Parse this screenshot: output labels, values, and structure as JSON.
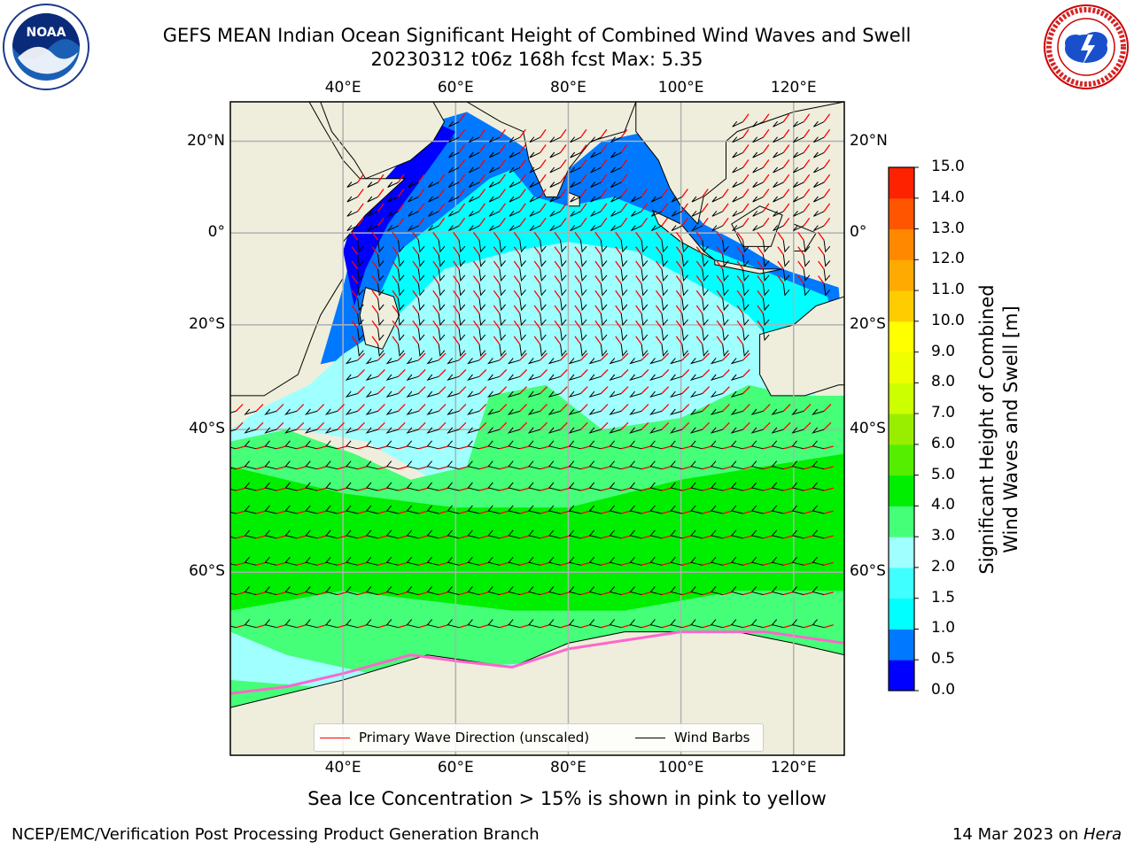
{
  "header": {
    "title_line1": "GEFS MEAN Indian Ocean Significant Height of Combined Wind Waves and Swell",
    "title_line2": "20230312 t06z 168h fcst   Max: 5.35"
  },
  "logos": {
    "left": "noaa-logo",
    "right": "nws-logo",
    "left_text": "NOAA"
  },
  "axes": {
    "lon_ticks": [
      "40°E",
      "60°E",
      "80°E",
      "100°E",
      "120°E"
    ],
    "lat_ticks": [
      "20°N",
      "0°",
      "20°S",
      "40°S",
      "60°S"
    ],
    "lon_range": [
      20,
      129
    ],
    "lat_range": [
      -75,
      28
    ],
    "lon_values": [
      40,
      60,
      80,
      100,
      120
    ],
    "lat_values": [
      20,
      0,
      -20,
      -40,
      -60
    ]
  },
  "colorbar": {
    "label_line1": "Significant Height of Combined",
    "label_line2": "Wind Waves and Swell [m]",
    "ticks": [
      "15.0",
      "14.0",
      "13.0",
      "12.0",
      "11.0",
      "10.0",
      "9.0",
      "8.0",
      "7.0",
      "6.0",
      "5.0",
      "4.0",
      "3.0",
      "2.0",
      "1.5",
      "1.0",
      "0.5",
      "0.0"
    ],
    "levels": [
      0.0,
      0.5,
      1.0,
      1.5,
      2.0,
      3.0,
      4.0,
      5.0,
      6.0,
      7.0,
      8.0,
      9.0,
      10.0,
      11.0,
      12.0,
      13.0,
      14.0,
      15.0
    ],
    "colors": [
      "#0000ff",
      "#0078ff",
      "#00ffff",
      "#40ffff",
      "#a0ffff",
      "#44ff77",
      "#00ee00",
      "#55ee00",
      "#99ee00",
      "#ccff00",
      "#eeff00",
      "#ffff00",
      "#ffcc00",
      "#ffaa00",
      "#ff8800",
      "#ff5500",
      "#ff2200"
    ]
  },
  "legend": {
    "wave_label": "Primary Wave Direction (unscaled)",
    "barb_label": "Wind Barbs",
    "wave_color": "#ff0000",
    "barb_color": "#000000"
  },
  "note": "Sea Ice Concentration > 15% is shown in pink to yellow",
  "footer": {
    "left": "NCEP/EMC/Verification Post Processing Product Generation Branch",
    "right_date": "14 Mar 2023 on ",
    "right_host": "Hera"
  },
  "colors": {
    "land": "#efeedc",
    "grid": "#b0b0b0",
    "sea_ice": "#ff66cc"
  }
}
